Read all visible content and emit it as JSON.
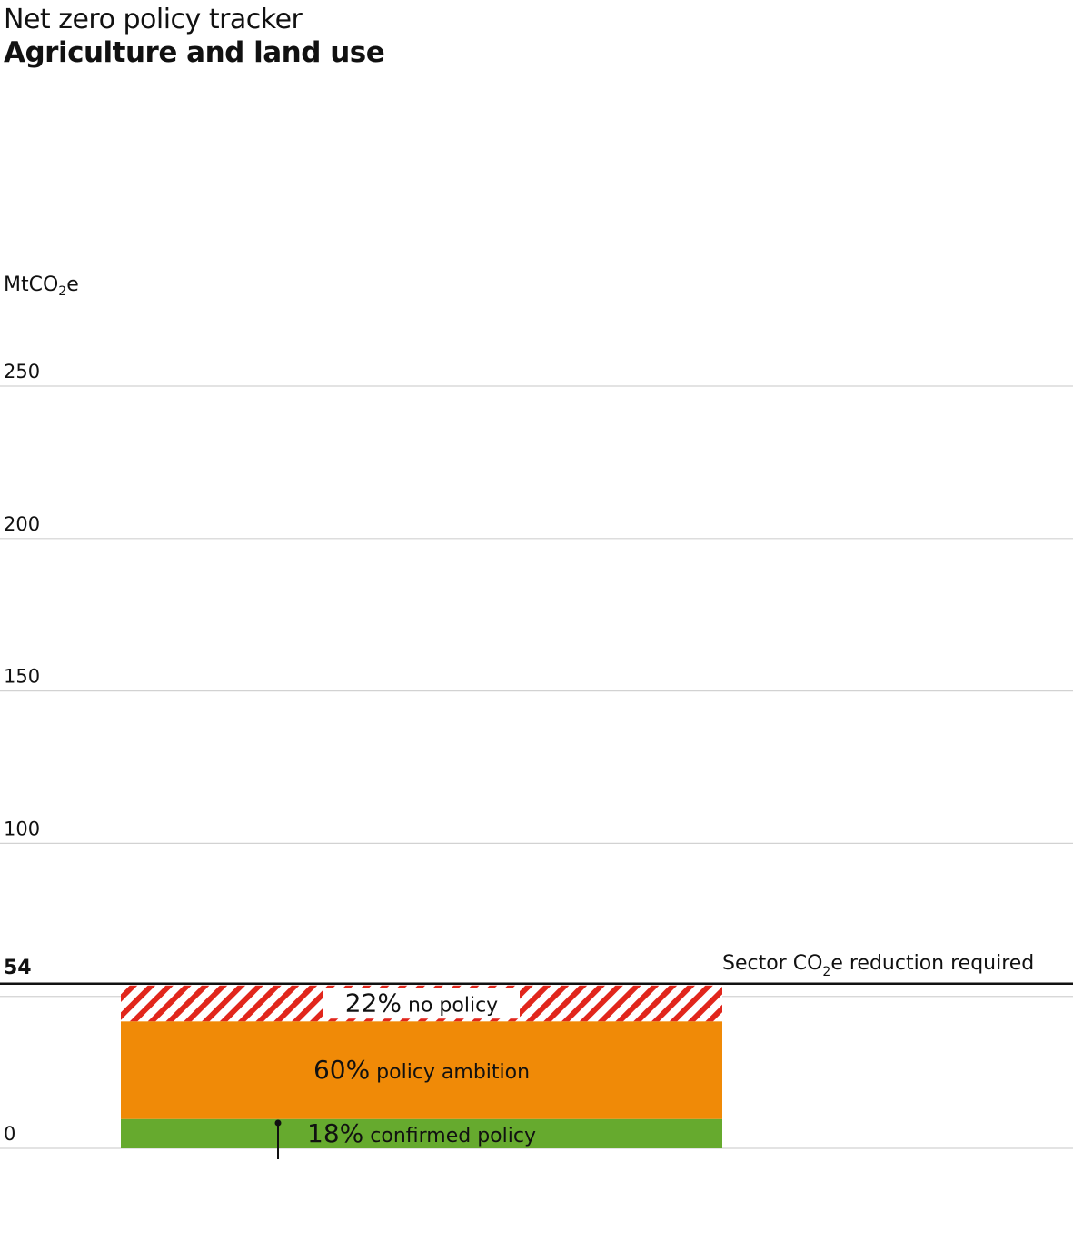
{
  "header": {
    "kicker": "Net zero policy tracker",
    "title": "Agriculture and land use"
  },
  "chart_data": {
    "type": "bar",
    "stacked": true,
    "unit_label_main": "MtCO",
    "unit_label_sub": "2",
    "unit_label_end": "e",
    "yticks": [
      0,
      100,
      150,
      200,
      250
    ],
    "ylim": [
      0,
      250
    ],
    "grid": true,
    "target": {
      "value": 54,
      "label": "54",
      "caption_pre": "Sector CO",
      "caption_sub": "2",
      "caption_post": "e reduction required"
    },
    "segments": [
      {
        "name": "confirmed policy",
        "percent": 18,
        "percent_label": "18%",
        "color": "#66aa2e",
        "pattern": "solid"
      },
      {
        "name": "policy ambition",
        "percent": 60,
        "percent_label": "60%",
        "color": "#f08a07",
        "pattern": "solid"
      },
      {
        "name": "no policy",
        "percent": 22,
        "percent_label": "22%",
        "color": "#e1261c",
        "pattern": "hatched"
      }
    ]
  }
}
